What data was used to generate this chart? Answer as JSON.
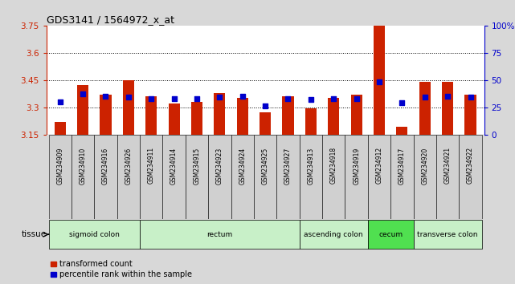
{
  "title": "GDS3141 / 1564972_x_at",
  "samples": [
    "GSM234909",
    "GSM234910",
    "GSM234916",
    "GSM234926",
    "GSM234911",
    "GSM234914",
    "GSM234915",
    "GSM234923",
    "GSM234924",
    "GSM234925",
    "GSM234927",
    "GSM234913",
    "GSM234918",
    "GSM234919",
    "GSM234912",
    "GSM234917",
    "GSM234920",
    "GSM234921",
    "GSM234922"
  ],
  "transformed_count": [
    3.22,
    3.42,
    3.37,
    3.45,
    3.36,
    3.32,
    3.33,
    3.38,
    3.35,
    3.27,
    3.36,
    3.295,
    3.35,
    3.37,
    3.75,
    3.19,
    3.44,
    3.44,
    3.37
  ],
  "percentile_rank": [
    30,
    37,
    35,
    34,
    33,
    33,
    33,
    34,
    35,
    26,
    33,
    32,
    33,
    33,
    48,
    29,
    34,
    35,
    34
  ],
  "baseline": 3.15,
  "ylim_left": [
    3.15,
    3.75
  ],
  "ylim_right": [
    0,
    100
  ],
  "yticks_left": [
    3.15,
    3.3,
    3.45,
    3.6,
    3.75
  ],
  "yticks_right": [
    0,
    25,
    50,
    75,
    100
  ],
  "ytick_labels_left": [
    "3.15",
    "3.3",
    "3.45",
    "3.6",
    "3.75"
  ],
  "ytick_labels_right": [
    "0",
    "25",
    "50",
    "75",
    "100%"
  ],
  "hlines": [
    3.3,
    3.45,
    3.6
  ],
  "tissue_groups": [
    {
      "label": "sigmoid colon",
      "start": 0,
      "end": 4,
      "color": "#c8f0c8"
    },
    {
      "label": "rectum",
      "start": 4,
      "end": 11,
      "color": "#c8f0c8"
    },
    {
      "label": "ascending colon",
      "start": 11,
      "end": 14,
      "color": "#c8f0c8"
    },
    {
      "label": "cecum",
      "start": 14,
      "end": 16,
      "color": "#50e050"
    },
    {
      "label": "transverse colon",
      "start": 16,
      "end": 19,
      "color": "#c8f0c8"
    }
  ],
  "bar_color": "#cc2200",
  "dot_color": "#0000cc",
  "bar_width": 0.5,
  "dot_size": 20,
  "bg_color": "#d8d8d8",
  "plot_bg": "#ffffff",
  "left_axis_color": "#cc2200",
  "right_axis_color": "#0000cc",
  "tissue_label": "tissue",
  "legend_entries": [
    "transformed count",
    "percentile rank within the sample"
  ],
  "legend_colors": [
    "#cc2200",
    "#0000cc"
  ]
}
